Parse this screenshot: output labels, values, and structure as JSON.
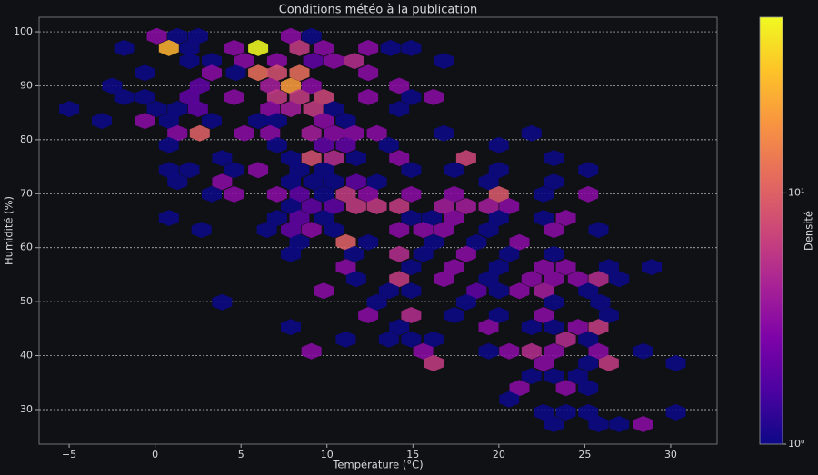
{
  "chart_data": {
    "type": "hexbin",
    "title": "Conditions météo à la publication",
    "xlabel": "Température (°C)",
    "ylabel": "Humidité (%)",
    "colorbar_label": "Densité",
    "colormap": "plasma",
    "color_log": true,
    "clim": [
      1,
      50
    ],
    "cticks": [
      {
        "value": 1,
        "label": "10⁰"
      },
      {
        "value": 10,
        "label": "10¹"
      }
    ],
    "xlim": [
      -6.75,
      32.7
    ],
    "ylim": [
      23.6,
      102.7
    ],
    "xticks": [
      {
        "value": -5,
        "label": "−5"
      },
      0,
      5,
      10,
      15,
      20,
      25,
      30
    ],
    "yticks": [
      30,
      40,
      50,
      60,
      70,
      80,
      90,
      100
    ],
    "grid": true,
    "x": [
      0.1,
      1.3,
      2.5,
      7.9,
      9.1,
      -1.8,
      0.8,
      2.0,
      4.6,
      6.0,
      8.4,
      9.8,
      12.4,
      13.7,
      14.9,
      2.0,
      3.3,
      5.2,
      7.1,
      9.2,
      10.4,
      11.6,
      16.8,
      -0.6,
      3.3,
      6.0,
      7.1,
      8.4,
      12.4,
      4.7,
      -2.5,
      2.6,
      6.7,
      7.9,
      14.2,
      9.1,
      -1.8,
      -0.6,
      2.0,
      4.6,
      7.1,
      8.4,
      9.8,
      12.4,
      14.9,
      16.2,
      -5.0,
      0.1,
      1.3,
      2.5,
      6.7,
      7.9,
      9.2,
      10.4,
      14.2,
      -3.1,
      -0.6,
      0.8,
      3.3,
      6.0,
      7.1,
      9.8,
      11.1,
      1.3,
      2.6,
      5.2,
      6.7,
      9.1,
      10.4,
      11.6,
      12.9,
      16.8,
      21.9,
      0.8,
      7.1,
      9.8,
      11.1,
      13.6,
      20.0,
      3.9,
      7.9,
      9.1,
      10.4,
      11.7,
      14.2,
      18.1,
      23.2,
      0.8,
      2.0,
      4.6,
      6.0,
      8.4,
      9.8,
      14.9,
      17.4,
      20.0,
      25.2,
      1.3,
      3.9,
      7.9,
      9.2,
      10.4,
      11.7,
      12.9,
      19.4,
      23.2,
      3.3,
      4.6,
      7.1,
      8.4,
      9.8,
      11.1,
      12.4,
      14.9,
      17.4,
      20.0,
      22.6,
      25.2,
      7.9,
      9.1,
      10.4,
      11.7,
      12.9,
      14.2,
      16.8,
      18.1,
      19.4,
      20.6,
      0.8,
      7.1,
      8.4,
      9.8,
      14.9,
      16.1,
      17.4,
      20.0,
      22.6,
      23.9,
      2.7,
      6.5,
      7.9,
      9.1,
      10.4,
      14.2,
      15.6,
      16.8,
      19.4,
      23.2,
      25.8,
      8.4,
      11.1,
      12.4,
      16.2,
      18.7,
      21.2,
      7.9,
      11.6,
      14.2,
      15.6,
      18.1,
      20.6,
      23.2,
      11.1,
      14.9,
      17.4,
      20.0,
      22.6,
      23.9,
      26.4,
      28.9,
      11.7,
      14.2,
      16.8,
      19.4,
      21.9,
      23.2,
      24.6,
      25.8,
      27.0,
      9.8,
      13.6,
      14.9,
      18.7,
      20.0,
      21.2,
      22.6,
      25.2,
      3.9,
      12.9,
      18.1,
      23.2,
      25.9,
      12.4,
      14.9,
      17.4,
      20.0,
      22.6,
      26.4,
      7.9,
      14.2,
      19.4,
      21.9,
      23.2,
      24.6,
      25.8,
      11.1,
      13.6,
      14.9,
      16.2,
      23.9,
      25.2,
      9.1,
      15.6,
      19.4,
      20.6,
      21.9,
      23.2,
      25.8,
      28.4,
      16.2,
      22.6,
      25.2,
      26.4,
      30.3,
      21.9,
      23.2,
      24.6,
      21.2,
      23.9,
      25.2,
      20.6,
      22.6,
      23.9,
      25.2,
      30.3,
      23.2,
      25.8,
      27.0,
      28.4
    ],
    "y": [
      99.2,
      99.2,
      99.2,
      99.2,
      99.2,
      97,
      97,
      97,
      97,
      97,
      97,
      97,
      97,
      97,
      97,
      94.6,
      94.6,
      94.6,
      94.6,
      94.6,
      94.6,
      94.6,
      94.6,
      92.4,
      92.4,
      92.4,
      92.4,
      92.4,
      92.4,
      92.4,
      90,
      90,
      90,
      90,
      90,
      90,
      87.9,
      87.9,
      87.9,
      87.9,
      87.9,
      87.9,
      87.9,
      87.9,
      87.9,
      87.9,
      85.7,
      85.7,
      85.7,
      85.7,
      85.7,
      85.7,
      85.7,
      85.7,
      85.7,
      83.5,
      83.5,
      83.5,
      83.5,
      83.5,
      83.5,
      83.5,
      83.5,
      81.2,
      81.2,
      81.2,
      81.2,
      81.2,
      81.2,
      81.2,
      81.2,
      81.2,
      81.2,
      79,
      79,
      79,
      79,
      79,
      79,
      76.6,
      76.6,
      76.6,
      76.6,
      76.6,
      76.6,
      76.6,
      76.6,
      74.4,
      74.4,
      74.4,
      74.4,
      74.4,
      74.4,
      74.4,
      74.4,
      74.4,
      74.4,
      72.2,
      72.2,
      72.2,
      72.2,
      72.2,
      72.2,
      72.2,
      72.2,
      72.2,
      69.9,
      69.9,
      69.9,
      69.9,
      69.9,
      69.9,
      69.9,
      69.9,
      69.9,
      69.9,
      69.9,
      69.9,
      67.7,
      67.7,
      67.7,
      67.7,
      67.7,
      67.7,
      67.7,
      67.7,
      67.7,
      67.7,
      65.5,
      65.5,
      65.5,
      65.5,
      65.5,
      65.5,
      65.5,
      65.5,
      65.5,
      65.5,
      63.3,
      63.3,
      63.3,
      63.3,
      63.3,
      63.3,
      63.3,
      63.3,
      63.3,
      63.3,
      63.3,
      61,
      61,
      61,
      61,
      61,
      61,
      58.8,
      58.8,
      58.8,
      58.8,
      58.8,
      58.8,
      58.8,
      56.4,
      56.4,
      56.4,
      56.4,
      56.4,
      56.4,
      56.4,
      56.4,
      54.2,
      54.2,
      54.2,
      54.2,
      54.2,
      54.2,
      54.2,
      54.2,
      54.2,
      52,
      52,
      52,
      52,
      52,
      52,
      52,
      52,
      49.9,
      49.9,
      49.9,
      49.9,
      49.9,
      47.5,
      47.5,
      47.5,
      47.5,
      47.5,
      47.5,
      45.3,
      45.3,
      45.3,
      45.3,
      45.3,
      45.3,
      45.3,
      43,
      43,
      43,
      43,
      43,
      43,
      40.8,
      40.8,
      40.8,
      40.8,
      40.8,
      40.8,
      40.8,
      40.8,
      38.6,
      38.6,
      38.6,
      38.6,
      38.6,
      36.2,
      36.2,
      36.2,
      34,
      34,
      34,
      31.9,
      29.5,
      29.5,
      29.5,
      29.5,
      27.3,
      27.3,
      27.3,
      27.3
    ],
    "values": [
      3,
      1,
      1,
      3,
      1,
      1,
      25,
      1,
      3,
      50,
      6,
      3,
      3,
      1,
      1,
      1,
      1,
      3,
      3,
      2,
      3,
      5,
      1,
      1,
      3,
      12,
      8,
      12,
      3,
      1,
      1,
      2,
      4,
      20,
      3,
      3,
      1,
      1,
      2,
      3,
      6,
      6,
      7,
      3,
      1,
      3,
      1,
      1,
      1,
      2,
      3,
      4,
      6,
      1,
      1,
      1,
      3,
      1,
      1,
      1,
      1,
      3,
      1,
      3,
      10,
      3,
      3,
      4,
      3,
      3,
      3,
      1,
      1,
      1,
      1,
      2,
      2,
      1,
      1,
      1,
      1,
      8,
      5,
      1,
      3,
      7,
      1,
      1,
      1,
      1,
      3,
      1,
      1,
      1,
      1,
      1,
      1,
      1,
      3,
      1,
      1,
      1,
      2,
      1,
      1,
      1,
      1,
      3,
      3,
      2,
      1,
      6,
      3,
      3,
      3,
      9,
      1,
      3,
      1,
      2,
      2,
      6,
      6,
      6,
      4,
      4,
      4,
      3,
      1,
      1,
      2,
      1,
      1,
      1,
      3,
      1,
      1,
      3,
      1,
      1,
      2,
      3,
      1,
      3,
      3,
      3,
      1,
      3,
      1,
      1,
      10,
      1,
      1,
      1,
      3,
      1,
      1,
      5,
      1,
      3,
      1,
      1,
      3,
      1,
      3,
      1,
      3,
      3,
      1,
      1,
      1,
      6,
      3,
      1,
      3,
      3,
      3,
      5,
      1,
      3,
      1,
      1,
      2,
      1,
      3,
      4,
      1,
      1,
      1,
      1,
      1,
      1,
      3,
      5,
      1,
      1,
      3,
      1,
      1,
      1,
      3,
      1,
      1,
      3,
      6,
      1,
      1,
      1,
      1,
      5,
      1,
      3,
      3,
      1,
      3,
      5,
      3,
      3,
      1,
      6,
      3,
      1,
      6,
      1,
      1,
      1,
      1,
      3,
      3,
      1,
      1,
      1,
      1,
      1,
      1,
      1,
      1,
      1,
      3
    ]
  }
}
